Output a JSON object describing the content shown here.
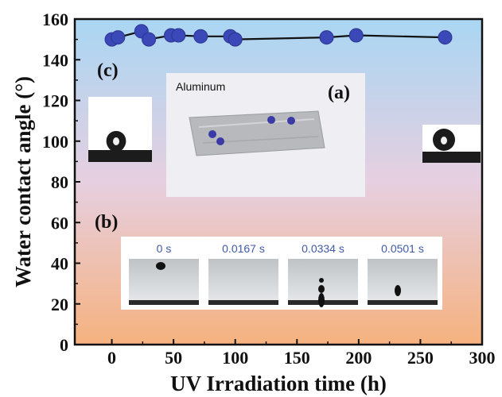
{
  "chart_data": {
    "type": "scatter",
    "xlabel": "UV Irradiation time (h)",
    "ylabel": "Water contact angle (°)",
    "xlim": [
      -30,
      300
    ],
    "ylim": [
      0,
      160
    ],
    "x_ticks": [
      0,
      50,
      100,
      150,
      200,
      250,
      300
    ],
    "y_ticks": [
      0,
      20,
      40,
      60,
      80,
      100,
      120,
      140,
      160
    ],
    "series": [
      {
        "x": [
          0,
          5,
          24,
          30,
          48,
          54,
          72,
          96,
          100,
          174,
          198,
          270
        ],
        "y": [
          150,
          151,
          154,
          150,
          152,
          152,
          151.5,
          151.5,
          150,
          151,
          152,
          151
        ],
        "color": "#3b48b8",
        "line_color": "#111111"
      }
    ],
    "grid": false,
    "background_gradient": [
      "#a9d6f3",
      "#f6b27f"
    ],
    "insets": {
      "a": {
        "label": "(a)",
        "title": "Aluminum"
      },
      "b": {
        "label": "(b)",
        "frames": [
          "0 s",
          "0.0167 s",
          "0.0334 s",
          "0.0501 s"
        ]
      },
      "c": {
        "label": "(c)"
      }
    }
  }
}
